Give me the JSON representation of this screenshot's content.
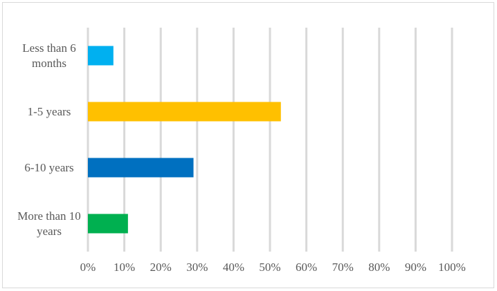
{
  "chart_data": {
    "type": "bar",
    "orientation": "horizontal",
    "categories": [
      "Less than 6 months",
      "1-5 years",
      "6-10 years",
      "More than 10 years"
    ],
    "values": [
      7,
      53,
      29,
      11
    ],
    "colors": [
      "#00b0f0",
      "#ffc000",
      "#0070c0",
      "#00b050"
    ],
    "xlim": [
      0,
      100
    ],
    "xticks": [
      {
        "value": 0,
        "label": "0%"
      },
      {
        "value": 10,
        "label": "10%"
      },
      {
        "value": 20,
        "label": "20%"
      },
      {
        "value": 30,
        "label": "30%"
      },
      {
        "value": 40,
        "label": "40%"
      },
      {
        "value": 50,
        "label": "50%"
      },
      {
        "value": 60,
        "label": "60%"
      },
      {
        "value": 70,
        "label": "70%"
      },
      {
        "value": 80,
        "label": "80%"
      },
      {
        "value": 90,
        "label": "90%"
      },
      {
        "value": 100,
        "label": "100%"
      }
    ],
    "grid": true
  }
}
